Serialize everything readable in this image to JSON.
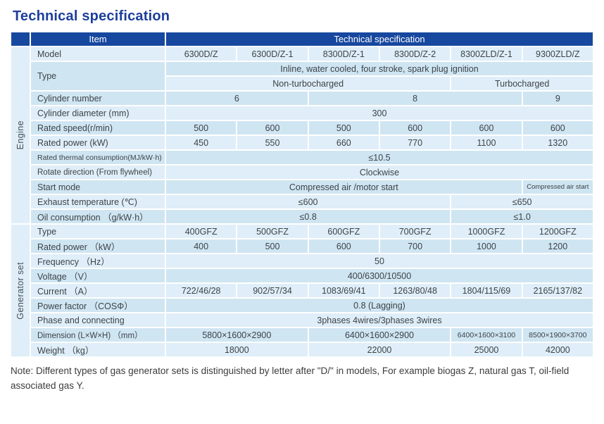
{
  "title": "Technical specification",
  "table": {
    "header": {
      "item": "Item",
      "spec": "Technical specification"
    },
    "groups": [
      {
        "label": "Engine",
        "rows": 12
      },
      {
        "label": "Generator set",
        "rows": 9
      }
    ],
    "rows": [
      {
        "g": 0,
        "label": "Model",
        "cells": [
          {
            "t": "6300D/Z"
          },
          {
            "t": "6300D/Z-1"
          },
          {
            "t": "8300D/Z-1"
          },
          {
            "t": "8300D/Z-2"
          },
          {
            "t": "8300ZLD/Z-1"
          },
          {
            "t": "9300ZLD/Z"
          }
        ]
      },
      {
        "label": "Type",
        "lr": 2,
        "cells": [
          {
            "t": "Inline, water cooled, four stroke, spark plug ignition",
            "s": 6
          }
        ]
      },
      {
        "cells": [
          {
            "t": "Non-turbocharged",
            "s": 4
          },
          {
            "t": "Turbocharged",
            "s": 2
          }
        ]
      },
      {
        "label": "Cylinder number",
        "cells": [
          {
            "t": "6",
            "s": 2
          },
          {
            "t": "8",
            "s": 3
          },
          {
            "t": "9",
            "s": 1
          }
        ]
      },
      {
        "label": "Cylinder diameter (mm)",
        "cells": [
          {
            "t": "300",
            "s": 6
          }
        ]
      },
      {
        "label": "Rated speed(r/min)",
        "cells": [
          {
            "t": "500"
          },
          {
            "t": "600"
          },
          {
            "t": "500"
          },
          {
            "t": "600"
          },
          {
            "t": "600"
          },
          {
            "t": "600"
          }
        ]
      },
      {
        "label": "Rated power (kW)",
        "cells": [
          {
            "t": "450"
          },
          {
            "t": "550"
          },
          {
            "t": "660"
          },
          {
            "t": "770"
          },
          {
            "t": "1100"
          },
          {
            "t": "1320"
          }
        ]
      },
      {
        "label": "Rated thermal consumption(MJ/kW·h)",
        "lsm": true,
        "cells": [
          {
            "t": "≤10.5",
            "s": 6
          }
        ]
      },
      {
        "label": "Rotate direction (From flywheel)",
        "lsm2": true,
        "cells": [
          {
            "t": "Clockwise",
            "s": 6
          }
        ]
      },
      {
        "label": "Start mode",
        "cells": [
          {
            "t": "Compressed air /motor start",
            "s": 5
          },
          {
            "t": "Compressed air start",
            "s": 1,
            "sm": true
          }
        ]
      },
      {
        "label": "Exhaust temperature (℃)",
        "cells": [
          {
            "t": "≤600",
            "s": 4
          },
          {
            "t": "≤650",
            "s": 2
          }
        ]
      },
      {
        "label": "Oil consumption （g/kW·h）",
        "cells": [
          {
            "t": "≤0.8",
            "s": 4
          },
          {
            "t": "≤1.0",
            "s": 2
          }
        ]
      },
      {
        "g": 1,
        "label": "Type",
        "cells": [
          {
            "t": "400GFZ"
          },
          {
            "t": "500GFZ"
          },
          {
            "t": "600GFZ"
          },
          {
            "t": "700GFZ"
          },
          {
            "t": "1000GFZ"
          },
          {
            "t": "1200GFZ"
          }
        ]
      },
      {
        "label": "Rated power （kW）",
        "cells": [
          {
            "t": "400"
          },
          {
            "t": "500"
          },
          {
            "t": "600"
          },
          {
            "t": "700"
          },
          {
            "t": "1000"
          },
          {
            "t": "1200"
          }
        ]
      },
      {
        "label": "Frequency （Hz）",
        "cells": [
          {
            "t": "50",
            "s": 6
          }
        ]
      },
      {
        "label": "Voltage （V）",
        "cells": [
          {
            "t": "400/6300/10500",
            "s": 6
          }
        ]
      },
      {
        "label": "Current （A）",
        "cells": [
          {
            "t": "722/46/28"
          },
          {
            "t": "902/57/34"
          },
          {
            "t": "1083/69/41"
          },
          {
            "t": "1263/80/48"
          },
          {
            "t": "1804/115/69"
          },
          {
            "t": "2165/137/82"
          }
        ]
      },
      {
        "label": "Power factor （COSΦ）",
        "cells": [
          {
            "t": "0.8 (Lagging)",
            "s": 6
          }
        ]
      },
      {
        "label": "Phase and connecting",
        "cells": [
          {
            "t": "3phases 4wires/3phases 3wires",
            "s": 6
          }
        ]
      },
      {
        "label": "Dimension (L×W×H) （mm）",
        "lsm2": true,
        "cells": [
          {
            "t": "5800×1600×2900",
            "s": 2
          },
          {
            "t": "6400×1600×2900",
            "s": 2
          },
          {
            "t": "6400×1600×3100",
            "sm2": true
          },
          {
            "t": "8500×1900×3700",
            "sm2": true
          }
        ]
      },
      {
        "label": "Weight （kg）",
        "cells": [
          {
            "t": "18000",
            "s": 2
          },
          {
            "t": "22000",
            "s": 2
          },
          {
            "t": "25000"
          },
          {
            "t": "42000"
          }
        ]
      }
    ]
  },
  "note": "Note: Different types of gas generator sets is distinguished by letter after \"D/\" in models, For example biogas Z, natural gas T, oil-field associated gas Y.",
  "colors": {
    "header_bg": "#17489f",
    "title_text": "#1c3f9b",
    "row_light": "#dfeef8",
    "row_dark": "#cfe5f2",
    "group_strip": "#c8e1ef",
    "cell_text": "#3d4348"
  }
}
